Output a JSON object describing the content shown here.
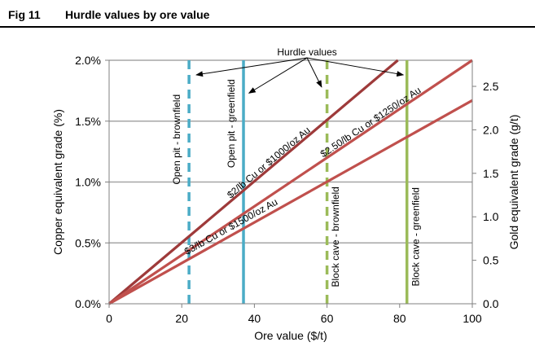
{
  "header": {
    "fig_number": "Fig 11",
    "title": "Hurdle values by ore value"
  },
  "chart_data": {
    "type": "line",
    "xlabel": "Ore value ($/t)",
    "ylabel": "Copper equivalent grade (%)",
    "ylabel_right": "Gold equivalent grade (g/t)",
    "xlim": [
      0,
      100
    ],
    "ylim": [
      0,
      2.0
    ],
    "ylim_right": [
      0,
      2.8
    ],
    "x_ticks": [
      0,
      20,
      40,
      60,
      80,
      100
    ],
    "x_tick_labels": [
      "0",
      "20",
      "40",
      "60",
      "80",
      "100"
    ],
    "y_ticks": [
      0,
      0.5,
      1.0,
      1.5,
      2.0
    ],
    "y_tick_labels": [
      "0.0%",
      "0.5%",
      "1.0%",
      "1.5%",
      "2.0%"
    ],
    "y_right_ticks": [
      0,
      0.5,
      1.0,
      1.5,
      2.0,
      2.5
    ],
    "y_right_tick_labels": [
      "0.0",
      "0.5",
      "1.0",
      "1.5",
      "2.0",
      "2.5"
    ],
    "grid": "horizontal",
    "series": [
      {
        "name": "$2/lb Cu or $1000/oz Au",
        "x": [
          0,
          79.5
        ],
        "y": [
          0,
          2.0
        ],
        "color": "#9e3a3a"
      },
      {
        "name": "$2.50/lb Cu or $1250/oz Au",
        "x": [
          0,
          100
        ],
        "y": [
          0,
          2.0
        ],
        "color": "#c0504d"
      },
      {
        "name": "$3/lb Cu or $1500/oz Au",
        "x": [
          0,
          100
        ],
        "y": [
          0,
          1.67
        ],
        "color": "#c0504d"
      }
    ],
    "series_label_pos": [
      {
        "x": 44.5,
        "y": 1.14
      },
      {
        "x": 72.5,
        "y": 1.47
      },
      {
        "x": 34,
        "y": 0.61
      }
    ],
    "hurdles": [
      {
        "label": "Open pit - brownfield",
        "x": 22,
        "color": "#4bacc6",
        "style": "dashed"
      },
      {
        "label": "Open pit - greenfield",
        "x": 37,
        "color": "#4bacc6",
        "style": "solid"
      },
      {
        "label": "Block cave - brownfield",
        "x": 60,
        "color": "#9bbb59",
        "style": "dashed"
      },
      {
        "label": "Block cave - greenfield",
        "x": 82,
        "color": "#9bbb59",
        "style": "solid"
      }
    ],
    "hurdle_label_pos": [
      {
        "x": 19.5,
        "y": 1.35
      },
      {
        "x": 34.5,
        "y": 1.48
      },
      {
        "x": 63.2,
        "y": 0.55
      },
      {
        "x": 85.3,
        "y": 0.55
      }
    ],
    "annotation": {
      "text": "Hurdle values",
      "x": 54.5,
      "y": 2.04,
      "targets": [
        {
          "x": 24,
          "y": 1.88
        },
        {
          "x": 38.5,
          "y": 1.73
        },
        {
          "x": 58.5,
          "y": 1.78
        },
        {
          "x": 81,
          "y": 1.88
        }
      ]
    },
    "colors": {
      "grid": "#a6a6a6",
      "axis": "#808080"
    }
  }
}
